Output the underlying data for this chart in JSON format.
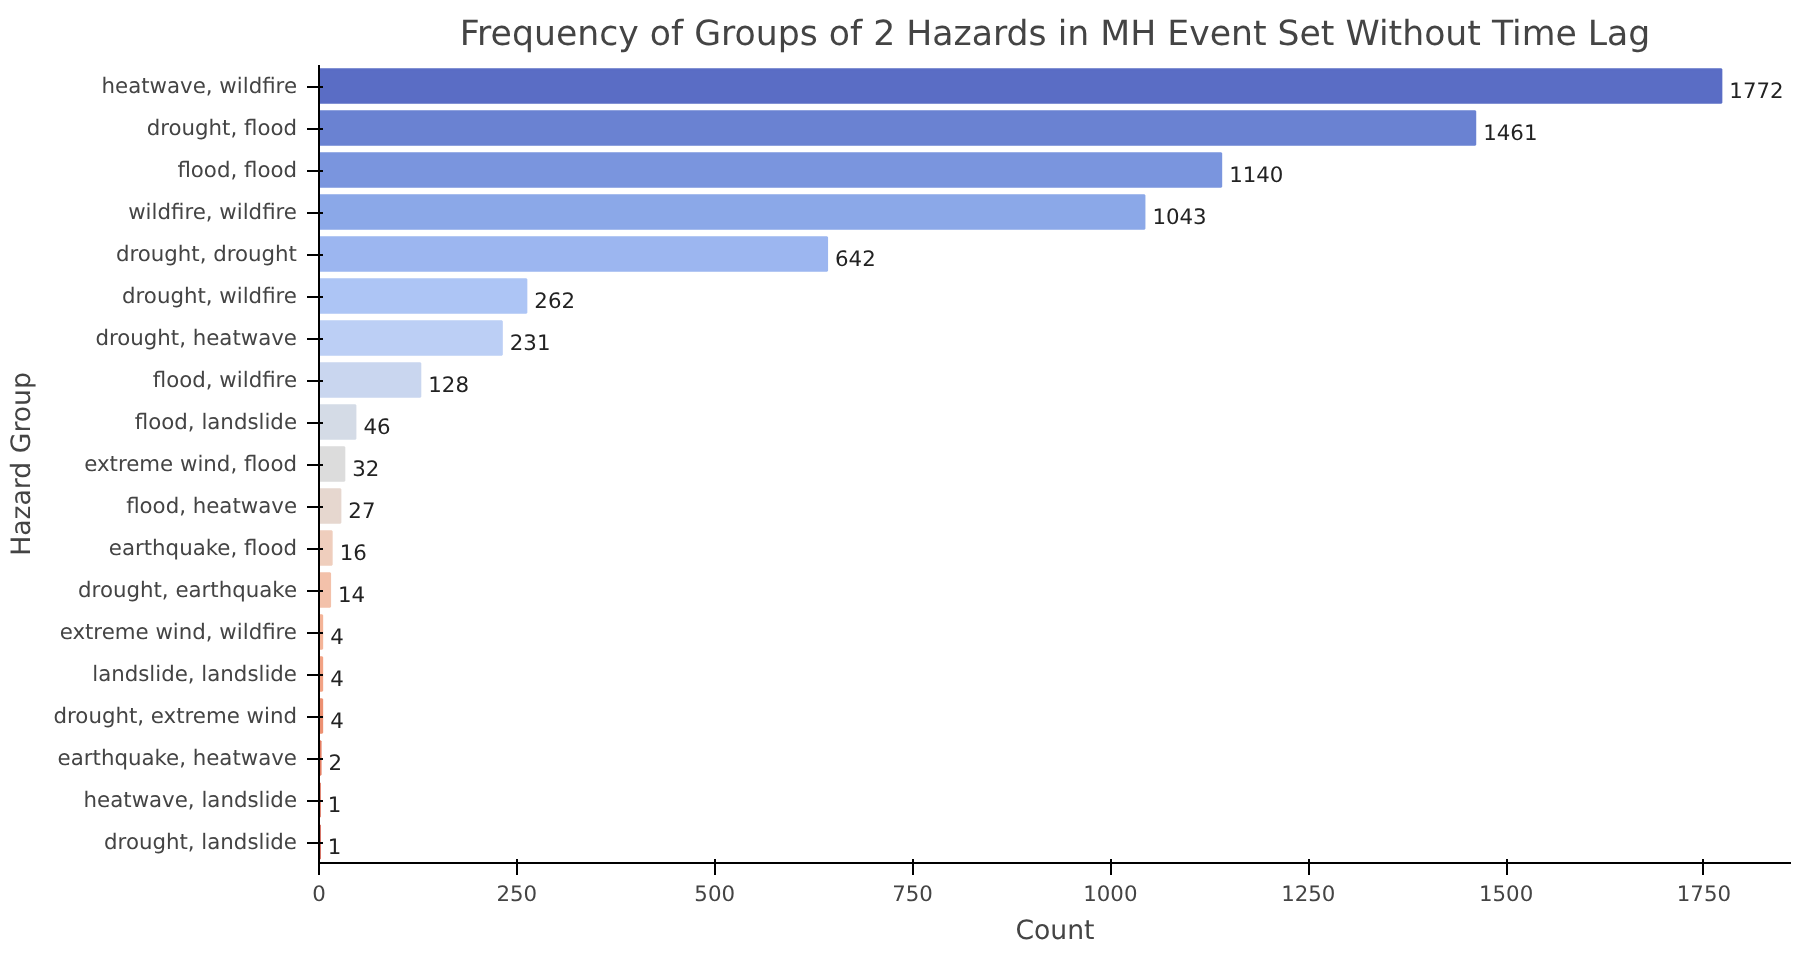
{
  "chart_data": {
    "type": "bar",
    "orientation": "horizontal",
    "title": "Frequency of Groups of 2 Hazards in MH Event Set Without Time Lag",
    "xlabel": "Count",
    "ylabel": "Hazard Group",
    "categories": [
      "heatwave, wildfire",
      "drought, flood",
      "flood, flood",
      "wildfire, wildfire",
      "drought, drought",
      "drought, wildfire",
      "drought, heatwave",
      "flood, wildfire",
      "flood, landslide",
      "extreme wind, flood",
      "flood, heatwave",
      "earthquake, flood",
      "drought, earthquake",
      "extreme wind, wildfire",
      "landslide, landslide",
      "drought, extreme wind",
      "earthquake, heatwave",
      "heatwave, landslide",
      "drought, landslide"
    ],
    "values": [
      1772,
      1461,
      1140,
      1043,
      642,
      262,
      231,
      128,
      46,
      32,
      27,
      16,
      14,
      4,
      4,
      4,
      2,
      1,
      1
    ],
    "colors": [
      "#5a6dc5",
      "#6a82d2",
      "#7a95de",
      "#8ba8e8",
      "#9cb6f0",
      "#adc5f5",
      "#bccff5",
      "#c9d6ef",
      "#d4dbe6",
      "#dcdcdc",
      "#e6d7cf",
      "#efcebd",
      "#f3c1aa",
      "#f4b498",
      "#f2a385",
      "#ec9172",
      "#e47e62",
      "#d96852",
      "#cc5141"
    ],
    "xlim": [
      0,
      1860
    ],
    "xticks": [
      0,
      250,
      500,
      750,
      1000,
      1250,
      1500,
      1750
    ],
    "data_labels": true,
    "grid": false
  }
}
